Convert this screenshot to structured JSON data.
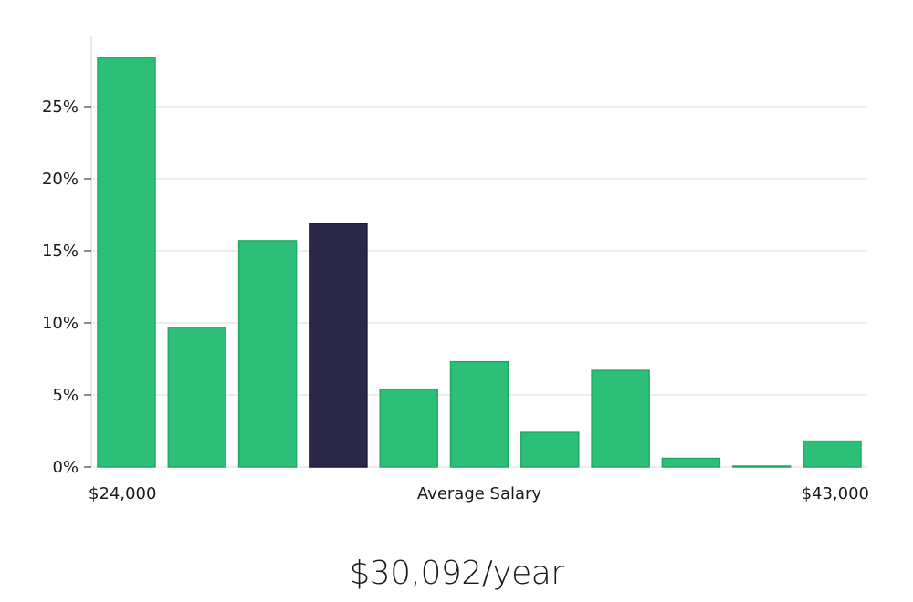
{
  "headline": "$30,092/year",
  "chart_data": {
    "type": "bar",
    "xlabel": "Average Salary",
    "x_min_label": "$24,000",
    "x_max_label": "$43,000",
    "ylim": [
      0,
      30
    ],
    "yticks": [
      0,
      5,
      10,
      15,
      20,
      25
    ],
    "ytick_labels": [
      "0%",
      "5%",
      "10%",
      "15%",
      "20%",
      "25%"
    ],
    "grid": true,
    "values": [
      28.4,
      9.7,
      15.7,
      16.9,
      5.4,
      7.3,
      2.4,
      6.7,
      0.6,
      0.05,
      1.8
    ],
    "highlight_index": 3,
    "colors": {
      "bar": "#2bbf78",
      "bar_stroke": "#21a866",
      "highlight": "#2b2748",
      "highlight_stroke": "#1a1640",
      "grid": "#dcdcdc",
      "axis": "#cfcfcf"
    }
  }
}
